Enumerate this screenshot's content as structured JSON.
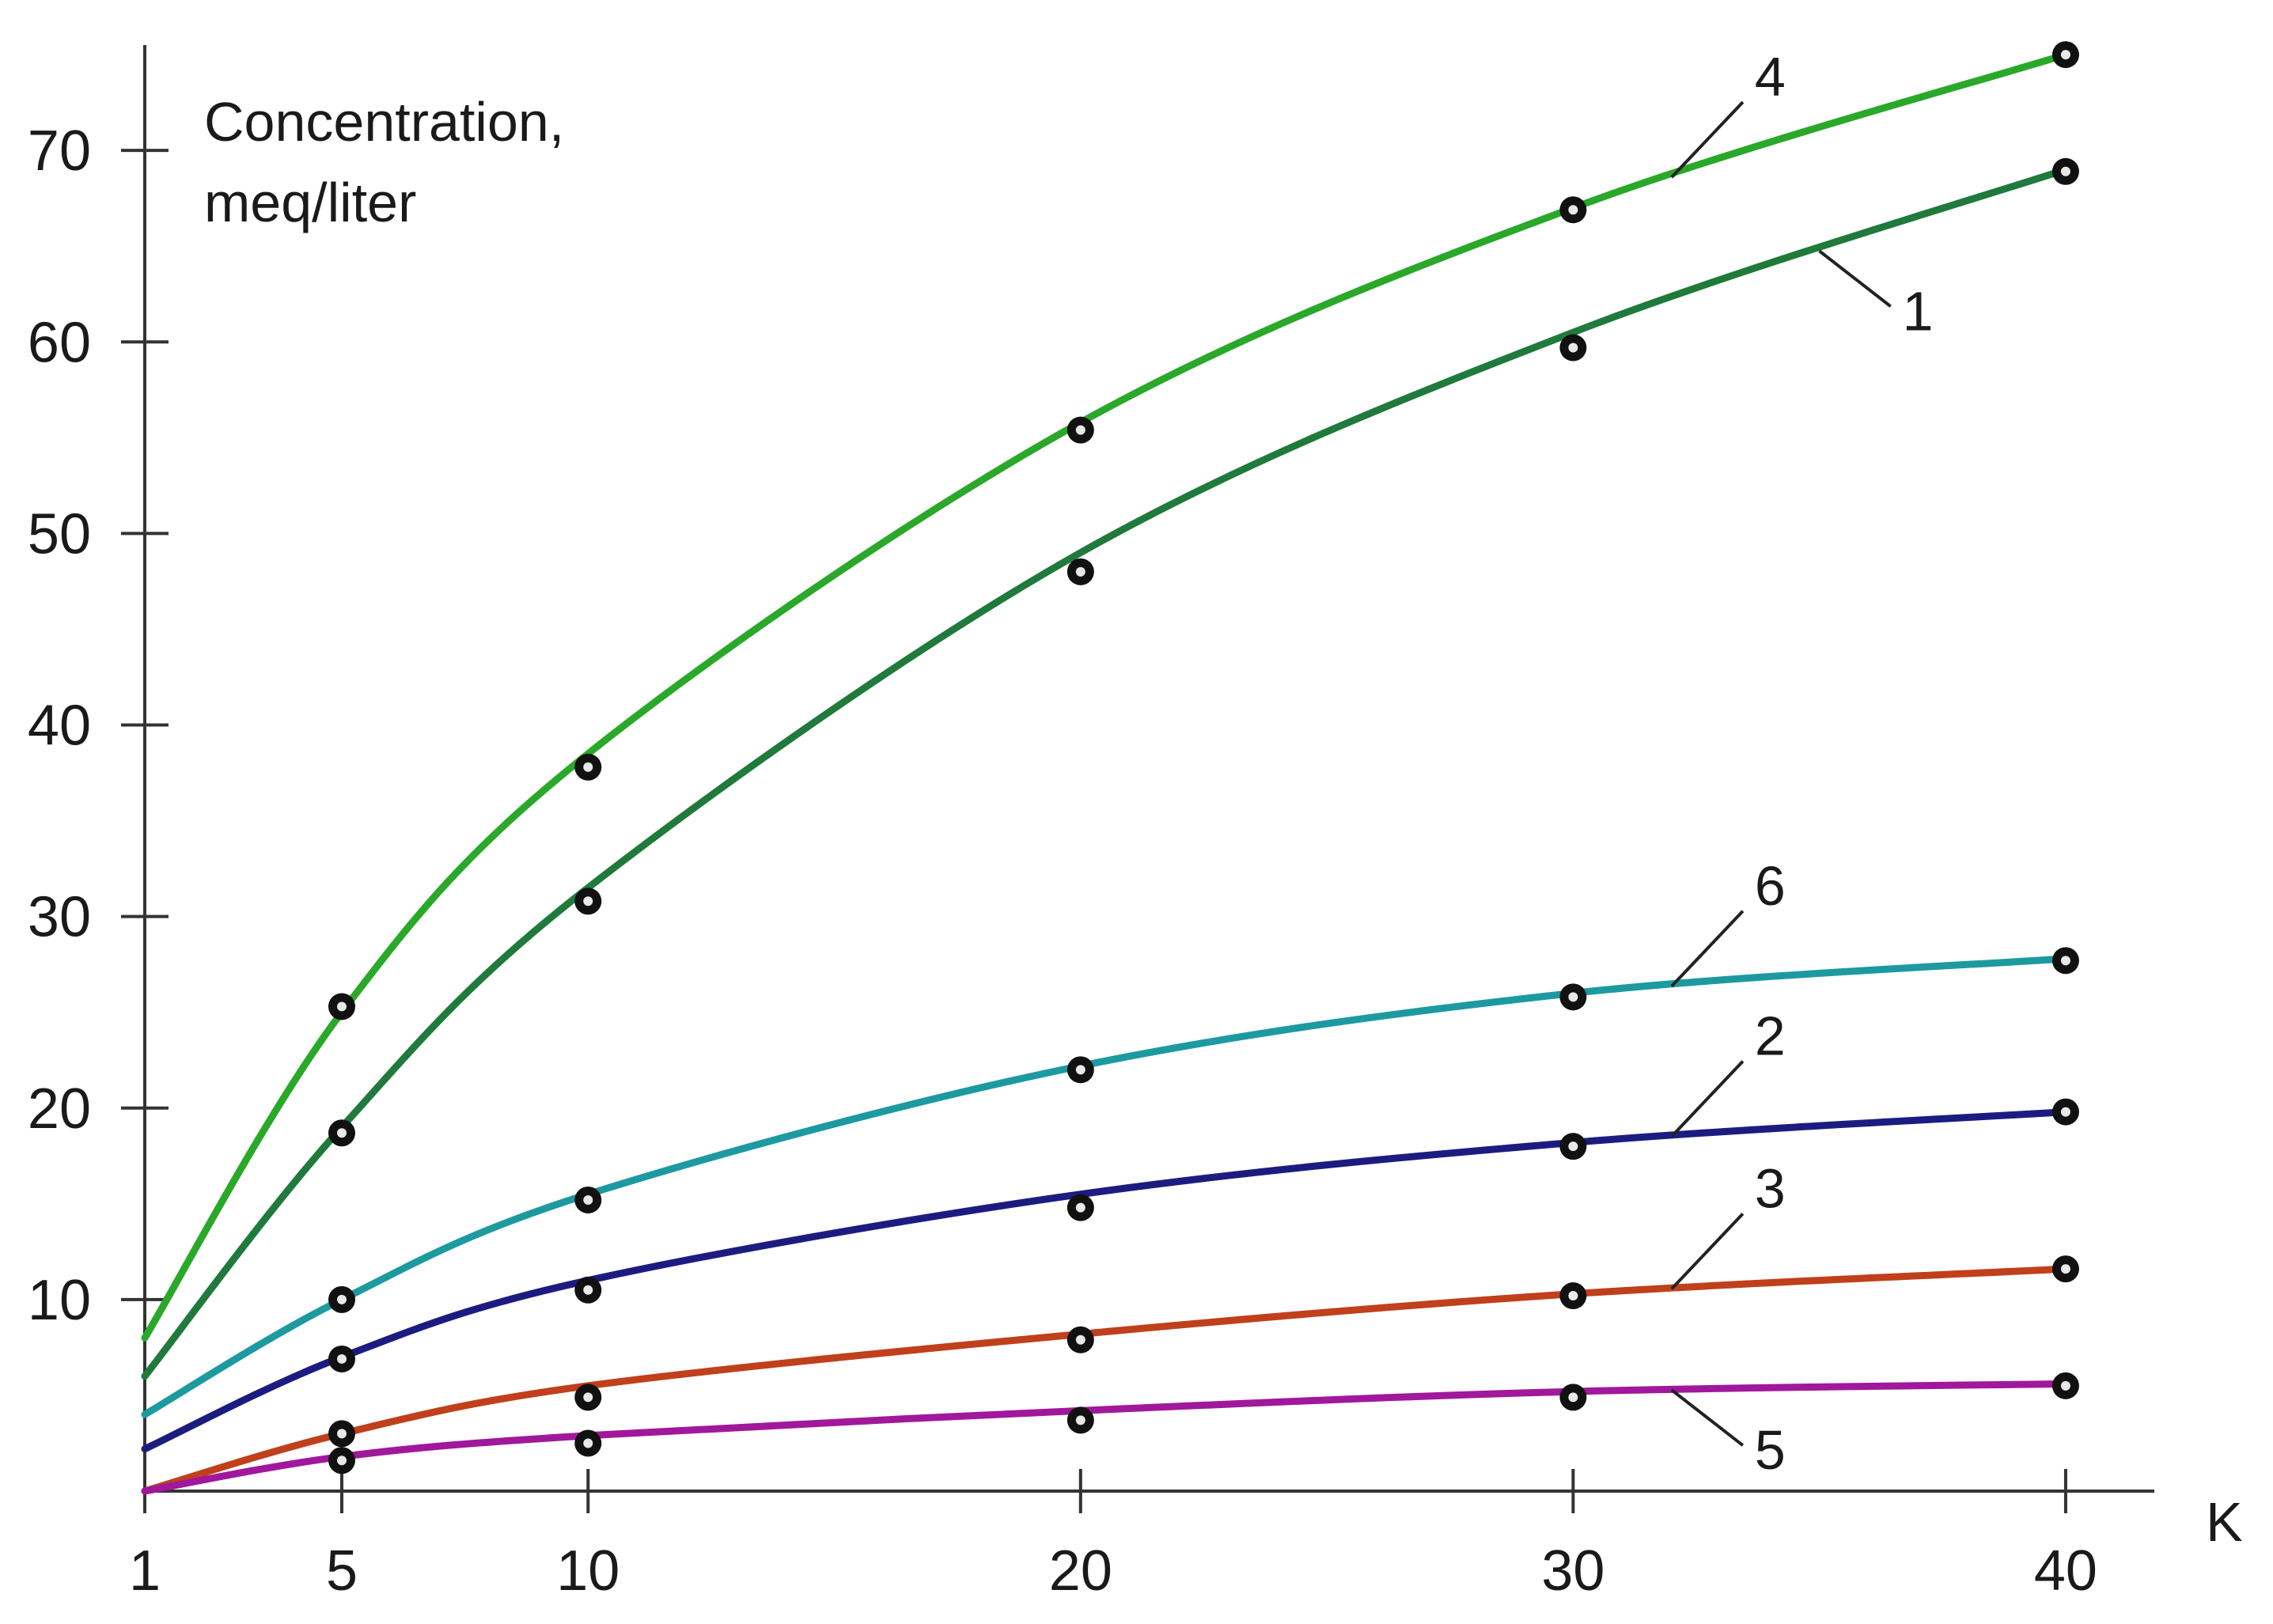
{
  "chart_data": {
    "type": "line",
    "ylabel": "Concentration,",
    "ylabel_line2": "meq/liter",
    "xlabel": "K",
    "x_ticks": [
      1,
      5,
      10,
      20,
      30,
      40
    ],
    "y_ticks": [
      10,
      20,
      30,
      40,
      50,
      60,
      70
    ],
    "xlim": [
      1,
      41.8
    ],
    "ylim": [
      0,
      75.5
    ],
    "grid": false,
    "series": [
      {
        "name": "1",
        "color": "#1f7a3c",
        "curve": [
          [
            1,
            6
          ],
          [
            5,
            19
          ],
          [
            10,
            31.5
          ],
          [
            20,
            49
          ],
          [
            30,
            60.5
          ],
          [
            40,
            69
          ]
        ],
        "points": [
          [
            5,
            18.7
          ],
          [
            10,
            30.8
          ],
          [
            20,
            48
          ],
          [
            30,
            59.7
          ],
          [
            40,
            68.9
          ]
        ],
        "label_at": 35
      },
      {
        "name": "2",
        "color": "#1c1c80",
        "curve": [
          [
            1,
            2.2
          ],
          [
            5,
            7
          ],
          [
            10,
            11
          ],
          [
            20,
            15.5
          ],
          [
            30,
            18.2
          ],
          [
            40,
            19.8
          ]
        ],
        "points": [
          [
            5,
            6.9
          ],
          [
            10,
            10.5
          ],
          [
            20,
            14.8
          ],
          [
            30,
            18
          ],
          [
            40,
            19.8
          ]
        ],
        "label_at": 32
      },
      {
        "name": "3",
        "color": "#c0401c",
        "curve": [
          [
            1,
            0
          ],
          [
            5,
            3
          ],
          [
            10,
            5.5
          ],
          [
            20,
            8.2
          ],
          [
            30,
            10.3
          ],
          [
            40,
            11.6
          ]
        ],
        "points": [
          [
            5,
            3
          ],
          [
            10,
            4.9
          ],
          [
            20,
            7.9
          ],
          [
            30,
            10.2
          ],
          [
            40,
            11.6
          ]
        ],
        "label_at": 32
      },
      {
        "name": "4",
        "color": "#2aa82a",
        "curve": [
          [
            1,
            8
          ],
          [
            5,
            25
          ],
          [
            10,
            38.5
          ],
          [
            20,
            55.8
          ],
          [
            30,
            67
          ],
          [
            40,
            75
          ]
        ],
        "points": [
          [
            5,
            25.3
          ],
          [
            10,
            37.8
          ],
          [
            20,
            55.4
          ],
          [
            30,
            66.9
          ],
          [
            40,
            75
          ]
        ],
        "label_at": 32
      },
      {
        "name": "5",
        "color": "#a0189c",
        "curve": [
          [
            1,
            0
          ],
          [
            5,
            1.8
          ],
          [
            10,
            2.9
          ],
          [
            20,
            4.2
          ],
          [
            30,
            5.2
          ],
          [
            40,
            5.6
          ]
        ],
        "points": [
          [
            5,
            1.6
          ],
          [
            10,
            2.5
          ],
          [
            20,
            3.7
          ],
          [
            30,
            4.9
          ],
          [
            40,
            5.5
          ]
        ],
        "label_at": 32
      },
      {
        "name": "6",
        "color": "#1d9aa0",
        "curve": [
          [
            1,
            4
          ],
          [
            5,
            10
          ],
          [
            10,
            15.5
          ],
          [
            20,
            22.2
          ],
          [
            30,
            26
          ],
          [
            40,
            27.8
          ]
        ],
        "points": [
          [
            5,
            10
          ],
          [
            10,
            15.2
          ],
          [
            20,
            22
          ],
          [
            30,
            25.8
          ],
          [
            40,
            27.7
          ]
        ],
        "label_at": 32
      }
    ]
  }
}
